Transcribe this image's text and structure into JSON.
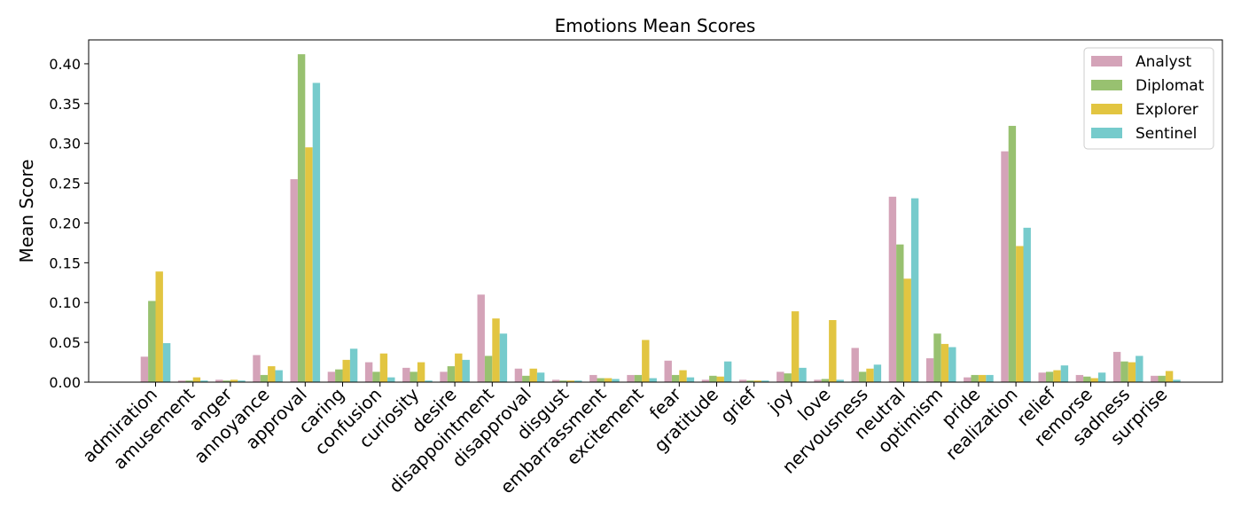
{
  "chart_data": {
    "type": "bar",
    "title": "Emotions Mean Scores",
    "xlabel": "",
    "ylabel": "Mean Score",
    "ylim": [
      0,
      0.43
    ],
    "yticks": [
      "0.00",
      "0.05",
      "0.10",
      "0.15",
      "0.20",
      "0.25",
      "0.30",
      "0.35",
      "0.40"
    ],
    "grid": false,
    "legend_position": "top-right",
    "categories": [
      "admiration",
      "amusement",
      "anger",
      "annoyance",
      "approval",
      "caring",
      "confusion",
      "curiosity",
      "desire",
      "disappointment",
      "disapproval",
      "disgust",
      "embarrassment",
      "excitement",
      "fear",
      "gratitude",
      "grief",
      "joy",
      "love",
      "nervousness",
      "neutral",
      "optimism",
      "pride",
      "realization",
      "relief",
      "remorse",
      "sadness",
      "surprise"
    ],
    "series": [
      {
        "name": "Analyst",
        "color": "#d4a3b8",
        "values": [
          0.032,
          0.002,
          0.003,
          0.034,
          0.255,
          0.013,
          0.025,
          0.018,
          0.013,
          0.11,
          0.017,
          0.003,
          0.009,
          0.009,
          0.027,
          0.003,
          0.003,
          0.013,
          0.003,
          0.043,
          0.233,
          0.03,
          0.006,
          0.29,
          0.012,
          0.009,
          0.038,
          0.008
        ]
      },
      {
        "name": "Diplomat",
        "color": "#98c170",
        "values": [
          0.102,
          0.002,
          0.002,
          0.009,
          0.412,
          0.016,
          0.013,
          0.013,
          0.02,
          0.033,
          0.008,
          0.002,
          0.005,
          0.009,
          0.009,
          0.008,
          0.002,
          0.011,
          0.004,
          0.013,
          0.173,
          0.061,
          0.009,
          0.322,
          0.013,
          0.007,
          0.026,
          0.008
        ]
      },
      {
        "name": "Explorer",
        "color": "#e2c541",
        "values": [
          0.139,
          0.006,
          0.003,
          0.02,
          0.295,
          0.028,
          0.036,
          0.025,
          0.036,
          0.08,
          0.017,
          0.002,
          0.005,
          0.053,
          0.015,
          0.007,
          0.002,
          0.089,
          0.078,
          0.017,
          0.13,
          0.048,
          0.009,
          0.171,
          0.015,
          0.005,
          0.025,
          0.014
        ]
      },
      {
        "name": "Sentinel",
        "color": "#76cbcc",
        "values": [
          0.049,
          0.002,
          0.002,
          0.015,
          0.376,
          0.042,
          0.006,
          0.002,
          0.028,
          0.061,
          0.012,
          0.002,
          0.004,
          0.005,
          0.006,
          0.026,
          0.002,
          0.018,
          0.003,
          0.022,
          0.231,
          0.044,
          0.009,
          0.194,
          0.021,
          0.012,
          0.033,
          0.003
        ]
      }
    ]
  }
}
